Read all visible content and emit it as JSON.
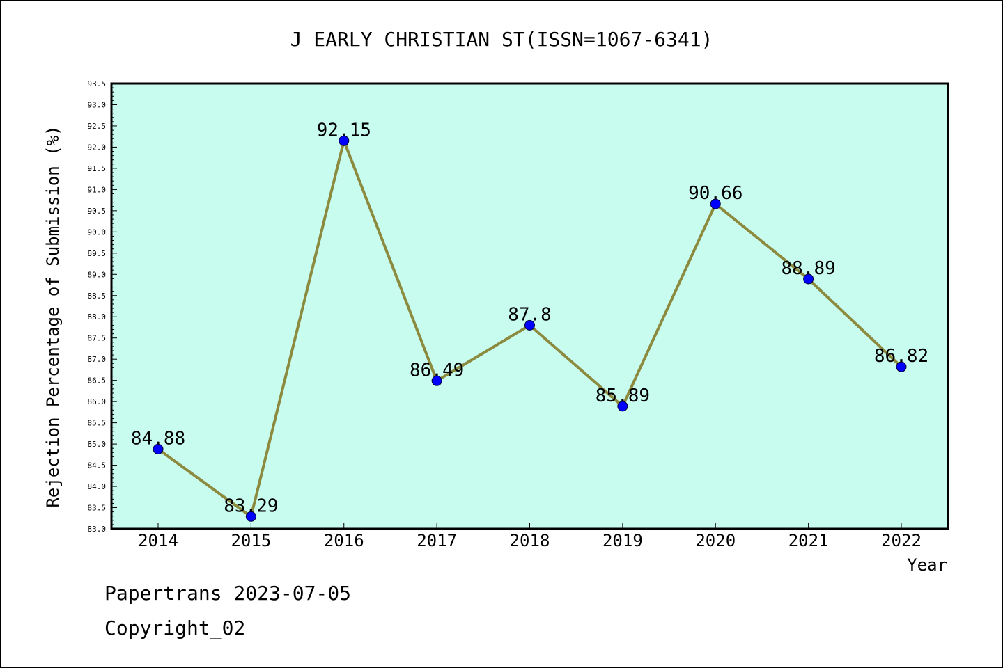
{
  "footer": {
    "line1": "Papertrans 2023-07-05",
    "line2": "Copyright_02"
  },
  "chart_data": {
    "type": "line",
    "title": "J EARLY CHRISTIAN ST(ISSN=1067-6341)",
    "xlabel": "Year",
    "ylabel": "Rejection Percentage of Submission (%)",
    "categories": [
      "2014",
      "2015",
      "2016",
      "2017",
      "2018",
      "2019",
      "2020",
      "2021",
      "2022"
    ],
    "values": [
      84.88,
      83.29,
      92.15,
      86.49,
      87.8,
      85.89,
      90.66,
      88.89,
      86.82
    ],
    "data_labels": [
      "84.88",
      "83.29",
      "92.15",
      "86.49",
      "87.8",
      "85.89",
      "90.66",
      "88.89",
      "86.82"
    ],
    "ylim": [
      83.0,
      93.5
    ],
    "ytick_step": 0.5,
    "grid": false,
    "colors": {
      "plot_background": "#c8fcee",
      "line": "#8b8a3e",
      "marker": "#0000ff"
    }
  }
}
